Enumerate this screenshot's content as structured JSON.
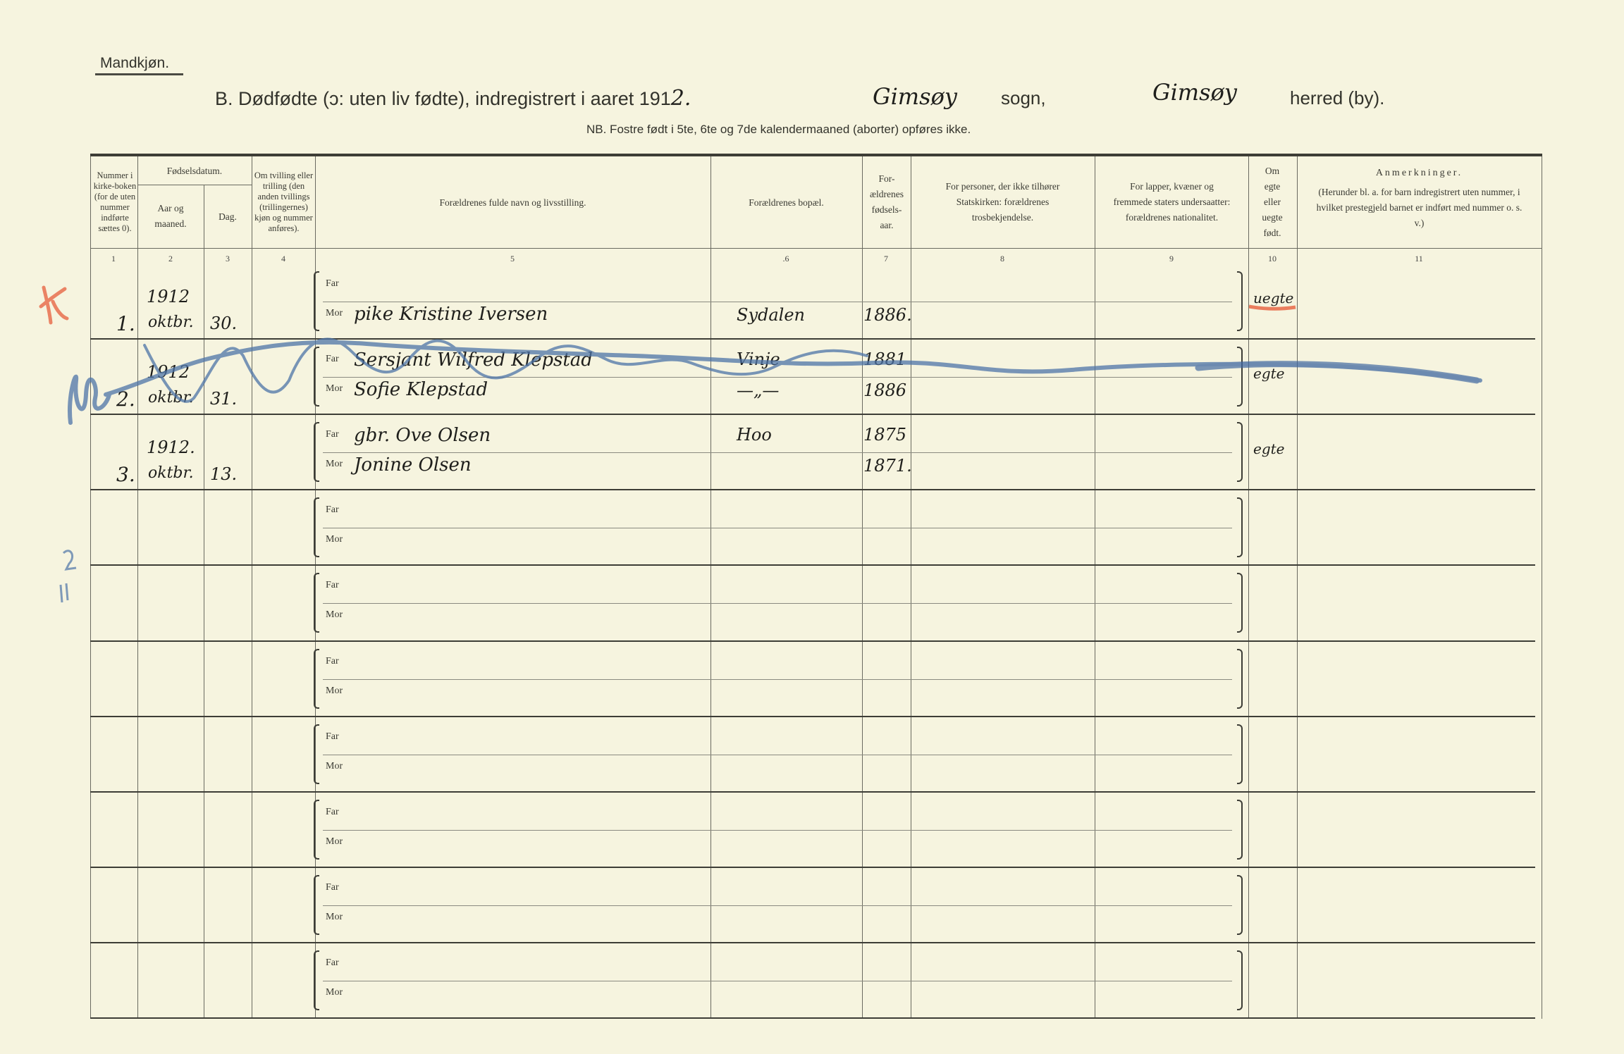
{
  "header": {
    "gender_label": "Mandkjøn.",
    "title_prefix": "B.  Dødfødte (ɔ: uten liv fødte), indregistrert i aaret 191",
    "title_year_suffix": "2.",
    "sogn_value": "Gimsøy",
    "sogn_label": "sogn,",
    "herred_value": "Gimsøy",
    "herred_label": "herred (by).",
    "note": "NB.  Fostre født i 5te, 6te og 7de kalendermaaned (aborter) opføres ikke."
  },
  "columns": [
    {
      "num": "1",
      "label": "Nummer i kirke-boken (for de uten nummer indførte sættes 0)."
    },
    {
      "num": "2",
      "label": "Aar og maaned."
    },
    {
      "num": "3",
      "label": "Dag."
    },
    {
      "num": "4",
      "label": "Om tvilling eller trilling (den anden tvillings (trillingernes) kjøn og nummer anføres)."
    },
    {
      "num": "5",
      "label": "Forældrenes fulde navn og livsstilling."
    },
    {
      "num": ".6",
      "label": "Forældrenes bopæl."
    },
    {
      "num": "7",
      "label": "For-ældrenes fødsels-aar."
    },
    {
      "num": "8",
      "label": "For personer, der ikke tilhører Statskirken: forældrenes trosbekjendelse."
    },
    {
      "num": "9",
      "label": "For lapper, kvæner og fremmede staters undersaatter: forældrenes nationalitet."
    },
    {
      "num": "10",
      "label": "Om egte eller uegte født."
    },
    {
      "num": "11",
      "label": "Anmerkninger."
    }
  ],
  "group_header": "Fødselsdatum.",
  "remarks_sub": "(Herunder bl. a. for barn indregistrert uten nummer, i hvilket prestegjeld barnet er indført med nummer o. s. v.)",
  "far_label": "Far",
  "mor_label": "Mor",
  "rows": [
    {
      "num": "1.",
      "year": "1912",
      "month": "oktbr.",
      "day": "30.",
      "far": "",
      "mor": "pike Kristine Iversen",
      "far_bopel": "",
      "mor_bopel": "Sydalen",
      "far_year": "",
      "mor_year": "1886.",
      "legit": "uegte"
    },
    {
      "num": "2.",
      "year": "1912",
      "month": "oktbr.",
      "day": "31.",
      "far": "Sersjant Wilfred Klepstad",
      "mor": "Sofie Klepstad",
      "far_bopel": "Vinje",
      "mor_bopel": "—„—",
      "far_year": "1881",
      "mor_year": "1886",
      "legit": "egte"
    },
    {
      "num": "3.",
      "year": "1912.",
      "month": "oktbr.",
      "day": "13.",
      "far": "gbr. Ove Olsen",
      "mor": "Jonine Olsen",
      "far_bopel": "Hoo",
      "mor_bopel": "",
      "far_year": "1875",
      "mor_year": "1871.",
      "legit": "egte"
    },
    {},
    {},
    {},
    {},
    {},
    {},
    {}
  ],
  "annotations": {
    "red_mark": "x-mark",
    "blue_crossout": "wavy-strike-through",
    "margin_note": "2."
  },
  "colors": {
    "paper": "#f6f4df",
    "ink": "#1f1f1c",
    "red_pencil": "#e9704f",
    "blue_pencil": "#4d74a8"
  }
}
